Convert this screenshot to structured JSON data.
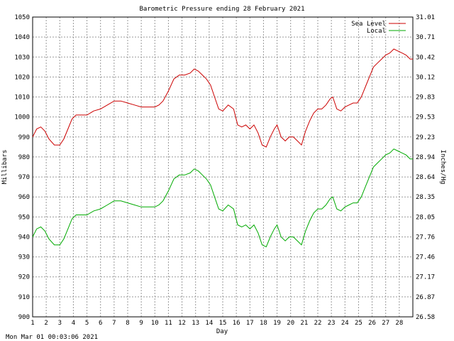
{
  "timestamp": "Mon Mar 01 00:03:06 2021",
  "chart_data": {
    "type": "line",
    "title": "Barometric Pressure ending 28 February 2021",
    "xlabel": "Day",
    "ylabel": "Millibars",
    "y2label": "Inches/Hg",
    "xlim": [
      1,
      29
    ],
    "ylim": [
      900,
      1050
    ],
    "grid": true,
    "legend_position": "top-right",
    "x_ticks": [
      "1",
      "2",
      "3",
      "4",
      "5",
      "6",
      "7",
      "8",
      "9",
      "10",
      "11",
      "12",
      "13",
      "14",
      "15",
      "16",
      "17",
      "18",
      "19",
      "20",
      "21",
      "22",
      "23",
      "24",
      "25",
      "26",
      "27",
      "28"
    ],
    "y_ticks": [
      "900",
      "910",
      "920",
      "930",
      "940",
      "950",
      "960",
      "970",
      "980",
      "990",
      "1000",
      "1010",
      "1020",
      "1030",
      "1040",
      "1050"
    ],
    "y2_ticks": [
      "26.58",
      "26.87",
      "27.17",
      "27.46",
      "27.76",
      "28.05",
      "28.35",
      "28.64",
      "28.94",
      "29.23",
      "29.53",
      "29.83",
      "30.12",
      "30.42",
      "30.71",
      "31.01"
    ],
    "colors": {
      "sea_level": "#cc0000",
      "local": "#00aa00"
    },
    "series": [
      {
        "name": "Sea Level",
        "x": [
          1,
          1.3,
          1.6,
          1.9,
          2.2,
          2.6,
          3,
          3.3,
          3.6,
          3.9,
          4.2,
          4.6,
          5,
          5.5,
          6,
          6.5,
          7,
          7.5,
          8,
          8.5,
          9,
          9.5,
          10,
          10.3,
          10.6,
          11,
          11.4,
          11.8,
          12.2,
          12.6,
          12.9,
          13.2,
          13.5,
          13.8,
          14.1,
          14.4,
          14.7,
          15,
          15.4,
          15.8,
          16.1,
          16.4,
          16.7,
          17,
          17.3,
          17.6,
          17.9,
          18.2,
          18.5,
          18.8,
          19,
          19.3,
          19.6,
          19.9,
          20.2,
          20.5,
          20.8,
          21.1,
          21.4,
          21.7,
          22,
          22.3,
          22.6,
          22.9,
          23.1,
          23.4,
          23.7,
          24,
          24.3,
          24.6,
          24.9,
          25.2,
          25.5,
          25.8,
          26.1,
          26.4,
          26.7,
          27,
          27.3,
          27.6,
          27.9,
          28.2,
          28.5,
          28.8,
          29
        ],
        "values": [
          990,
          994,
          995,
          993,
          989,
          986,
          986,
          989,
          994,
          999,
          1001,
          1001,
          1001,
          1003,
          1004,
          1006,
          1008,
          1008,
          1007,
          1006,
          1005,
          1005,
          1005,
          1006,
          1008,
          1013,
          1019,
          1021,
          1021,
          1022,
          1024,
          1023,
          1021,
          1019,
          1016,
          1010,
          1004,
          1003,
          1006,
          1004,
          996,
          995,
          996,
          994,
          996,
          992,
          986,
          985,
          990,
          994,
          996,
          990,
          988,
          990,
          990,
          988,
          986,
          993,
          998,
          1002,
          1004,
          1004,
          1006,
          1009,
          1010,
          1004,
          1003,
          1005,
          1006,
          1007,
          1007,
          1010,
          1015,
          1020,
          1025,
          1027,
          1029,
          1031,
          1032,
          1034,
          1033,
          1032,
          1031,
          1029,
          1029
        ]
      },
      {
        "name": "Local",
        "x": [
          1,
          1.3,
          1.6,
          1.9,
          2.2,
          2.6,
          3,
          3.3,
          3.6,
          3.9,
          4.2,
          4.6,
          5,
          5.5,
          6,
          6.5,
          7,
          7.5,
          8,
          8.5,
          9,
          9.5,
          10,
          10.3,
          10.6,
          11,
          11.4,
          11.8,
          12.2,
          12.6,
          12.9,
          13.2,
          13.5,
          13.8,
          14.1,
          14.4,
          14.7,
          15,
          15.4,
          15.8,
          16.1,
          16.4,
          16.7,
          17,
          17.3,
          17.6,
          17.9,
          18.2,
          18.5,
          18.8,
          19,
          19.3,
          19.6,
          19.9,
          20.2,
          20.5,
          20.8,
          21.1,
          21.4,
          21.7,
          22,
          22.3,
          22.6,
          22.9,
          23.1,
          23.4,
          23.7,
          24,
          24.3,
          24.6,
          24.9,
          25.2,
          25.5,
          25.8,
          26.1,
          26.4,
          26.7,
          27,
          27.3,
          27.6,
          27.9,
          28.2,
          28.5,
          28.8,
          29
        ],
        "values": [
          940,
          944,
          945,
          943,
          939,
          936,
          936,
          939,
          944,
          949,
          951,
          951,
          951,
          953,
          954,
          956,
          958,
          958,
          957,
          956,
          955,
          955,
          955,
          956,
          958,
          963,
          969,
          971,
          971,
          972,
          974,
          973,
          971,
          969,
          966,
          960,
          954,
          953,
          956,
          954,
          946,
          945,
          946,
          944,
          946,
          942,
          936,
          935,
          940,
          944,
          946,
          940,
          938,
          940,
          940,
          938,
          936,
          943,
          948,
          952,
          954,
          954,
          956,
          959,
          960,
          954,
          953,
          955,
          956,
          957,
          957,
          960,
          965,
          970,
          975,
          977,
          979,
          981,
          982,
          984,
          983,
          982,
          981,
          979,
          979
        ]
      }
    ]
  }
}
